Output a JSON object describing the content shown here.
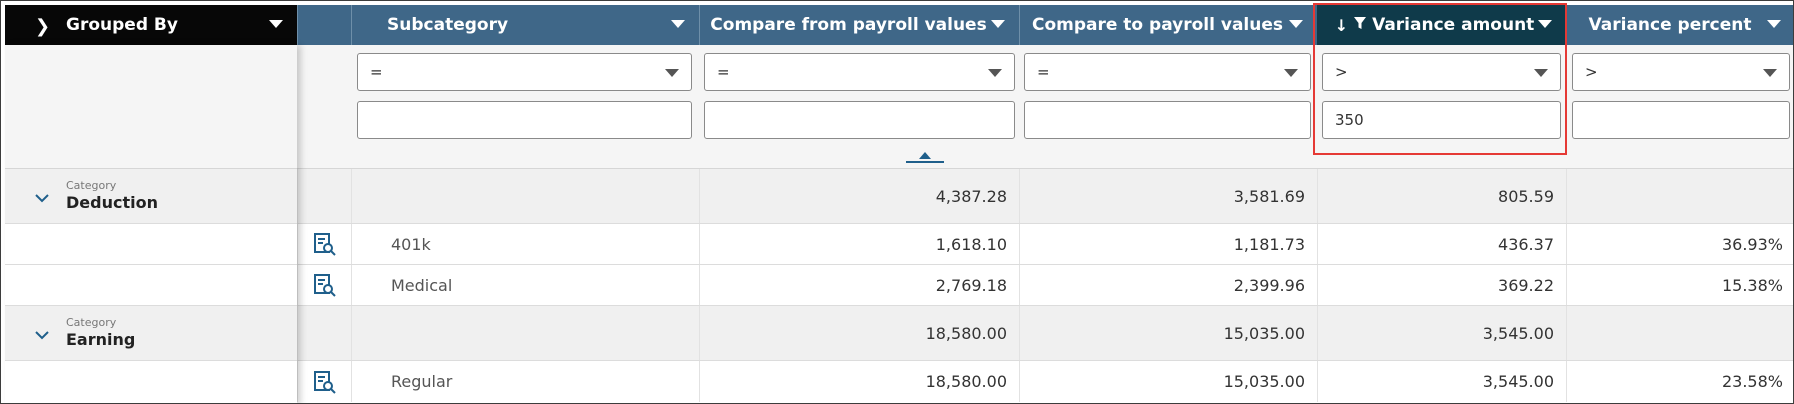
{
  "header": {
    "grouped_by": "Grouped By",
    "subcategory": "Subcategory",
    "compare_from": "Compare from payroll values",
    "compare_to": "Compare to payroll values",
    "variance_amount": "Variance amount",
    "variance_percent": "Variance percent",
    "sort_arrow": "↓",
    "filter_icon": "▼"
  },
  "filters": {
    "subcategory_op": "=",
    "compare_from_op": "=",
    "compare_to_op": "=",
    "variance_amount_op": ">",
    "variance_percent_op": ">",
    "subcategory_value": "",
    "compare_from_value": "",
    "compare_to_value": "",
    "variance_amount_value": "350",
    "variance_percent_value": ""
  },
  "groups": [
    {
      "category_label": "Category",
      "category": "Deduction",
      "from": "4,387.28",
      "to": "3,581.69",
      "variance": "805.59",
      "percent": ""
    },
    {
      "category_label": "Category",
      "category": "Earning",
      "from": "18,580.00",
      "to": "15,035.00",
      "variance": "3,545.00",
      "percent": ""
    }
  ],
  "rows": [
    {
      "subcategory": "401k",
      "from": "1,618.10",
      "to": "1,181.73",
      "variance": "436.37",
      "percent": "36.93%"
    },
    {
      "subcategory": "Medical",
      "from": "2,769.18",
      "to": "2,399.96",
      "variance": "369.22",
      "percent": "15.38%"
    },
    {
      "subcategory": "Regular",
      "from": "18,580.00",
      "to": "15,035.00",
      "variance": "3,545.00",
      "percent": "23.58%"
    }
  ],
  "colors": {
    "header_blue": "#3f6788",
    "header_active": "#0f3a4a",
    "header_black": "#070707",
    "highlight_red": "#e53935",
    "icon_blue": "#1f5f8b"
  },
  "icons": {
    "row_detail": "document-search-icon",
    "group_toggle": "chevron-down-icon",
    "grouped_by_toggle": "chevron-right-icon"
  }
}
